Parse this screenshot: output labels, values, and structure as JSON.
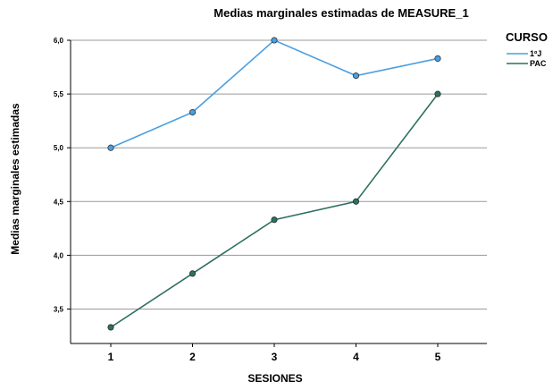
{
  "chart_data": {
    "type": "line",
    "title": "Medias marginales estimadas de MEASURE_1",
    "xlabel": "SESIONES",
    "ylabel": "Medias marginales estimadas",
    "categories": [
      "1",
      "2",
      "3",
      "4",
      "5"
    ],
    "ylim": [
      3.27,
      6.2
    ],
    "yticks": [
      3.5,
      4.0,
      4.5,
      5.0,
      5.5,
      6.0
    ],
    "ytick_labels": [
      "3,5",
      "4,0",
      "4,5",
      "5,0",
      "5,5",
      "6,0"
    ],
    "grid": true,
    "legend_position": "top-right",
    "legend_title": "CURSO",
    "series": [
      {
        "name": "1ºJ",
        "color": "#4a9fe0",
        "values": [
          5.0,
          5.33,
          6.0,
          5.67,
          5.83
        ]
      },
      {
        "name": "PAC",
        "color": "#2f6f62",
        "values": [
          3.33,
          3.83,
          4.33,
          4.5,
          5.5
        ]
      }
    ]
  }
}
